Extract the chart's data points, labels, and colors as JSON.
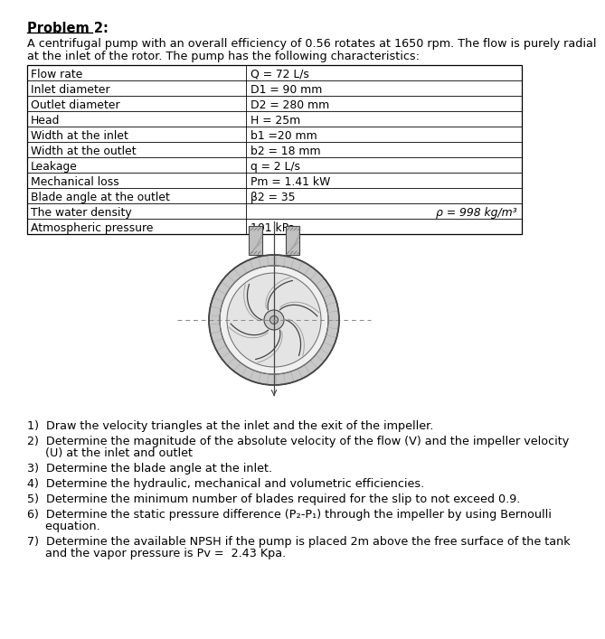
{
  "title": "Problem 2:",
  "intro_line1": "A centrifugal pump with an overall efficiency of 0.56 rotates at 1650 rpm. The flow is purely radial",
  "intro_line2": "at the inlet of the rotor. The pump has the following characteristics:",
  "table_rows": [
    [
      "Flow rate",
      "Q = 72 L/s"
    ],
    [
      "Inlet diameter",
      "D1 = 90 mm"
    ],
    [
      "Outlet diameter",
      "D2 = 280 mm"
    ],
    [
      "Head",
      "H = 25m"
    ],
    [
      "Width at the inlet",
      "b1 =20 mm"
    ],
    [
      "Width at the outlet",
      "b2 = 18 mm"
    ],
    [
      "Leakage",
      "q = 2 L/s"
    ],
    [
      "Mechanical loss",
      "Pm = 1.41 kW"
    ],
    [
      "Blade angle at the outlet",
      "β2 = 35"
    ],
    [
      "The water density",
      "ρ = 998 kg/m³"
    ],
    [
      "Atmospheric pressure",
      "101 kPa"
    ]
  ],
  "q1": "1)  Draw the velocity triangles at the inlet and the exit of the impeller.",
  "q2a": "2)  Determine the magnitude of the absolute velocity of the flow (V) and the impeller velocity",
  "q2b": "     (U) at the inlet and outlet",
  "q3": "3)  Determine the blade angle at the inlet.",
  "q4": "4)  Determine the hydraulic, mechanical and volumetric efficiencies.",
  "q5": "5)  Determine the minimum number of blades required for the slip to not exceed 0.9.",
  "q6a": "6)  Determine the static pressure difference (P₂-P₁) through the impeller by using Bernoulli",
  "q6b": "     equation.",
  "q7a": "7)  Determine the available NPSH if the pump is placed 2m above the free surface of the tank",
  "q7b": "     and the vapor pressure is Pv =  2.43 Kpa.",
  "bg_color": "#ffffff",
  "text_color": "#000000",
  "font_size": 9.2,
  "title_font_size": 10.5
}
